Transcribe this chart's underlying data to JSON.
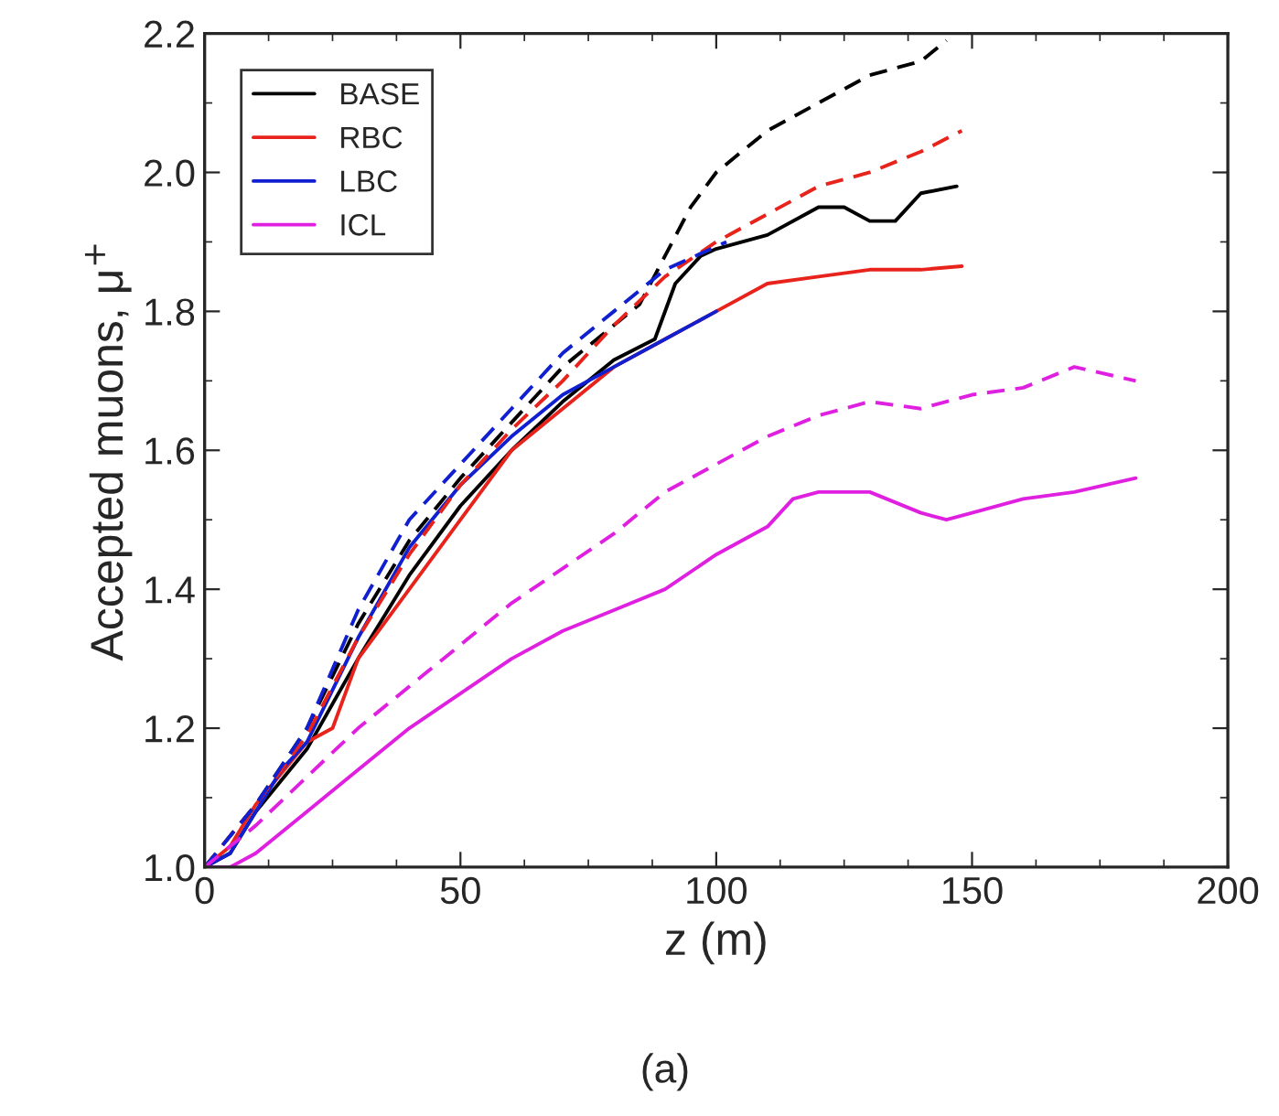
{
  "chart_data": {
    "type": "line",
    "xlabel": "z (m)",
    "ylabel": "Accepted muons, μ$^{+}$",
    "annotations": [
      "(a)"
    ],
    "xlim": [
      0,
      200
    ],
    "xticks": [
      0,
      50,
      100,
      150,
      200
    ],
    "ylim": [
      1.0,
      2.2
    ],
    "yticks": [
      {
        "value": 1.0,
        "label": "1.0"
      },
      1.2,
      1.4,
      1.6,
      1.8,
      {
        "value": 2.0,
        "label": "2.0"
      },
      2.2
    ],
    "grid": false,
    "legend": "top left",
    "marker": "none",
    "series": [
      {
        "name": "BASE",
        "color": "#000000",
        "line_style": "solid",
        "x": [
          0,
          5,
          10,
          20,
          30,
          40,
          50,
          60,
          70,
          80,
          88,
          92,
          97,
          100,
          110,
          120,
          125,
          130,
          135,
          140,
          147
        ],
        "values": [
          1.0,
          1.02,
          1.08,
          1.17,
          1.3,
          1.42,
          1.52,
          1.6,
          1.67,
          1.73,
          1.76,
          1.84,
          1.88,
          1.89,
          1.91,
          1.95,
          1.95,
          1.93,
          1.93,
          1.97,
          1.98
        ]
      },
      {
        "name": "RBC",
        "color": "#e8231c",
        "line_style": "solid",
        "x": [
          0,
          5,
          10,
          20,
          25,
          30,
          40,
          50,
          60,
          70,
          80,
          90,
          100,
          110,
          120,
          130,
          140,
          148
        ],
        "values": [
          1.0,
          1.03,
          1.09,
          1.18,
          1.2,
          1.3,
          1.4,
          1.5,
          1.6,
          1.66,
          1.72,
          1.76,
          1.8,
          1.84,
          1.85,
          1.86,
          1.86,
          1.865
        ]
      },
      {
        "name": "LBC",
        "color": "#1020d0",
        "line_style": "solid",
        "x": [
          0,
          5,
          10,
          15,
          20,
          30,
          40,
          50,
          60,
          70,
          80,
          90,
          100
        ],
        "values": [
          1.0,
          1.02,
          1.08,
          1.14,
          1.18,
          1.33,
          1.46,
          1.55,
          1.62,
          1.68,
          1.72,
          1.76,
          1.8
        ]
      },
      {
        "name": "ICL",
        "color": "#e020e0",
        "line_style": "solid",
        "x": [
          0,
          5,
          10,
          20,
          30,
          40,
          50,
          60,
          70,
          80,
          90,
          100,
          110,
          115,
          120,
          130,
          140,
          145,
          150,
          160,
          170,
          182
        ],
        "values": [
          1.0,
          1.0,
          1.02,
          1.08,
          1.14,
          1.2,
          1.25,
          1.3,
          1.34,
          1.37,
          1.4,
          1.45,
          1.49,
          1.53,
          1.54,
          1.54,
          1.51,
          1.5,
          1.51,
          1.53,
          1.54,
          1.56
        ]
      },
      {
        "color": "#000000",
        "line_style": "dashed",
        "x": [
          0,
          10,
          20,
          30,
          40,
          50,
          60,
          70,
          80,
          85,
          90,
          95,
          100,
          110,
          120,
          130,
          140,
          145
        ],
        "values": [
          1.0,
          1.09,
          1.2,
          1.35,
          1.47,
          1.56,
          1.64,
          1.72,
          1.78,
          1.81,
          1.88,
          1.95,
          2.0,
          2.06,
          2.1,
          2.14,
          2.16,
          2.19
        ]
      },
      {
        "color": "#e8231c",
        "line_style": "dashed",
        "x": [
          0,
          10,
          20,
          30,
          40,
          50,
          60,
          70,
          80,
          90,
          100,
          110,
          120,
          130,
          140,
          148
        ],
        "values": [
          1.0,
          1.09,
          1.19,
          1.33,
          1.45,
          1.55,
          1.63,
          1.7,
          1.78,
          1.85,
          1.9,
          1.94,
          1.98,
          2.0,
          2.03,
          2.06
        ]
      },
      {
        "color": "#1020d0",
        "line_style": "dashed",
        "x": [
          0,
          10,
          20,
          30,
          40,
          50,
          60,
          70,
          80,
          90,
          102
        ],
        "values": [
          1.0,
          1.09,
          1.2,
          1.37,
          1.5,
          1.58,
          1.66,
          1.74,
          1.8,
          1.86,
          1.9
        ]
      },
      {
        "color": "#e020e0",
        "line_style": "dashed",
        "x": [
          0,
          10,
          20,
          30,
          40,
          50,
          60,
          70,
          80,
          90,
          100,
          110,
          120,
          130,
          140,
          150,
          160,
          170,
          182
        ],
        "values": [
          1.0,
          1.06,
          1.13,
          1.2,
          1.26,
          1.32,
          1.38,
          1.43,
          1.48,
          1.54,
          1.58,
          1.62,
          1.65,
          1.67,
          1.66,
          1.68,
          1.69,
          1.72,
          1.7
        ]
      }
    ]
  }
}
